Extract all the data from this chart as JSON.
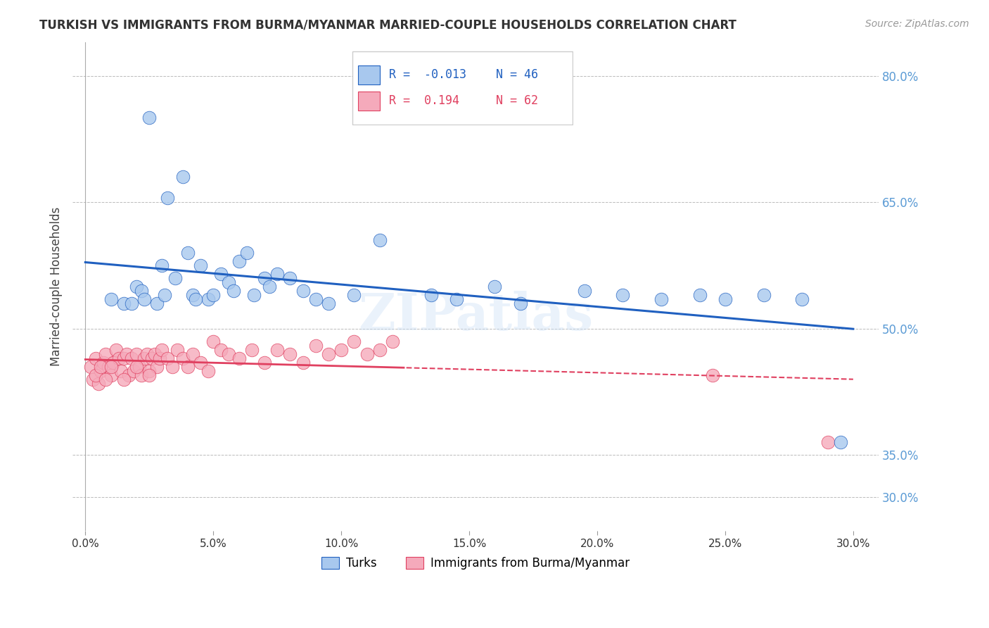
{
  "title": "TURKISH VS IMMIGRANTS FROM BURMA/MYANMAR MARRIED-COUPLE HOUSEHOLDS CORRELATION CHART",
  "source": "Source: ZipAtlas.com",
  "xlabel_vals": [
    0.0,
    5.0,
    10.0,
    15.0,
    20.0,
    25.0,
    30.0
  ],
  "ylabel": "Married-couple Households",
  "right_yticks_vals": [
    80.0,
    65.0,
    50.0,
    35.0,
    30.0
  ],
  "ylim": [
    26,
    84
  ],
  "xlim": [
    -0.5,
    31
  ],
  "blue_R": -0.013,
  "blue_N": 46,
  "pink_R": 0.194,
  "pink_N": 62,
  "blue_color": "#A8C8EE",
  "pink_color": "#F5AABB",
  "blue_line_color": "#2060C0",
  "pink_line_color": "#E04060",
  "legend_label_blue": "Turks",
  "legend_label_pink": "Immigrants from Burma/Myanmar",
  "watermark": "ZIPatlas",
  "blue_x": [
    1.0,
    1.5,
    2.0,
    2.2,
    2.5,
    2.8,
    3.0,
    3.2,
    3.5,
    3.8,
    4.0,
    4.2,
    4.5,
    4.8,
    5.0,
    5.3,
    5.6,
    6.0,
    6.3,
    6.6,
    7.0,
    7.5,
    8.0,
    8.5,
    9.5,
    10.5,
    11.5,
    13.5,
    14.5,
    16.0,
    17.0,
    19.5,
    21.0,
    22.5,
    24.0,
    25.0,
    26.5,
    28.0,
    29.5,
    1.8,
    2.3,
    3.1,
    4.3,
    5.8,
    7.2,
    9.0
  ],
  "blue_y": [
    53.5,
    53.0,
    55.0,
    54.5,
    75.0,
    53.0,
    57.5,
    65.5,
    56.0,
    68.0,
    59.0,
    54.0,
    57.5,
    53.5,
    54.0,
    56.5,
    55.5,
    58.0,
    59.0,
    54.0,
    56.0,
    56.5,
    56.0,
    54.5,
    53.0,
    54.0,
    60.5,
    54.0,
    53.5,
    55.0,
    53.0,
    54.5,
    54.0,
    53.5,
    54.0,
    53.5,
    54.0,
    53.5,
    36.5,
    53.0,
    53.5,
    54.0,
    53.5,
    54.5,
    55.0,
    53.5
  ],
  "pink_x": [
    0.2,
    0.3,
    0.4,
    0.5,
    0.6,
    0.7,
    0.8,
    0.9,
    1.0,
    1.1,
    1.2,
    1.3,
    1.4,
    1.5,
    1.6,
    1.7,
    1.8,
    1.9,
    2.0,
    2.1,
    2.2,
    2.3,
    2.4,
    2.5,
    2.6,
    2.7,
    2.8,
    2.9,
    3.0,
    3.2,
    3.4,
    3.6,
    3.8,
    4.0,
    4.2,
    4.5,
    4.8,
    5.0,
    5.3,
    5.6,
    6.0,
    6.5,
    7.0,
    7.5,
    8.0,
    8.5,
    9.0,
    9.5,
    10.0,
    10.5,
    11.0,
    11.5,
    12.0,
    0.4,
    0.6,
    0.8,
    1.0,
    1.5,
    2.0,
    2.5,
    24.5,
    29.0
  ],
  "pink_y": [
    45.5,
    44.0,
    46.5,
    43.5,
    45.0,
    46.0,
    47.0,
    45.5,
    44.5,
    46.0,
    47.5,
    46.5,
    45.0,
    46.5,
    47.0,
    44.5,
    46.5,
    45.0,
    47.0,
    45.5,
    44.5,
    46.5,
    47.0,
    45.0,
    46.5,
    47.0,
    45.5,
    46.5,
    47.5,
    46.5,
    45.5,
    47.5,
    46.5,
    45.5,
    47.0,
    46.0,
    45.0,
    48.5,
    47.5,
    47.0,
    46.5,
    47.5,
    46.0,
    47.5,
    47.0,
    46.0,
    48.0,
    47.0,
    47.5,
    48.5,
    47.0,
    47.5,
    48.5,
    44.5,
    45.5,
    44.0,
    45.5,
    44.0,
    45.5,
    44.5,
    44.5,
    36.5
  ]
}
